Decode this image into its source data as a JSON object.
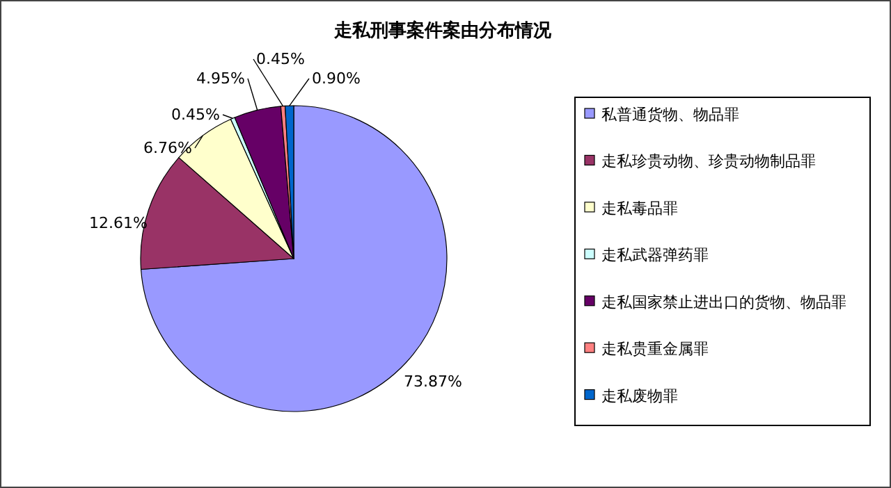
{
  "chart_data": {
    "type": "pie",
    "title": "走私刑事案件案由分布情况",
    "categories": [
      "私普通货物、物品罪",
      "走私珍贵动物、珍贵动物制品罪",
      "走私毒品罪",
      "走私武器弹药罪",
      "走私国家禁止进出口的货物、物品罪",
      "走私贵重金属罪",
      "走私废物罪"
    ],
    "values": [
      73.87,
      12.61,
      6.76,
      0.45,
      4.95,
      0.45,
      0.9
    ],
    "value_labels": [
      "73.87%",
      "12.61%",
      "6.76%",
      "0.45%",
      "4.95%",
      "0.45%",
      "0.90%"
    ],
    "colors": [
      "#9999ff",
      "#993366",
      "#ffffcc",
      "#ccffff",
      "#660066",
      "#ff8080",
      "#0066cc"
    ],
    "legend": "right"
  }
}
